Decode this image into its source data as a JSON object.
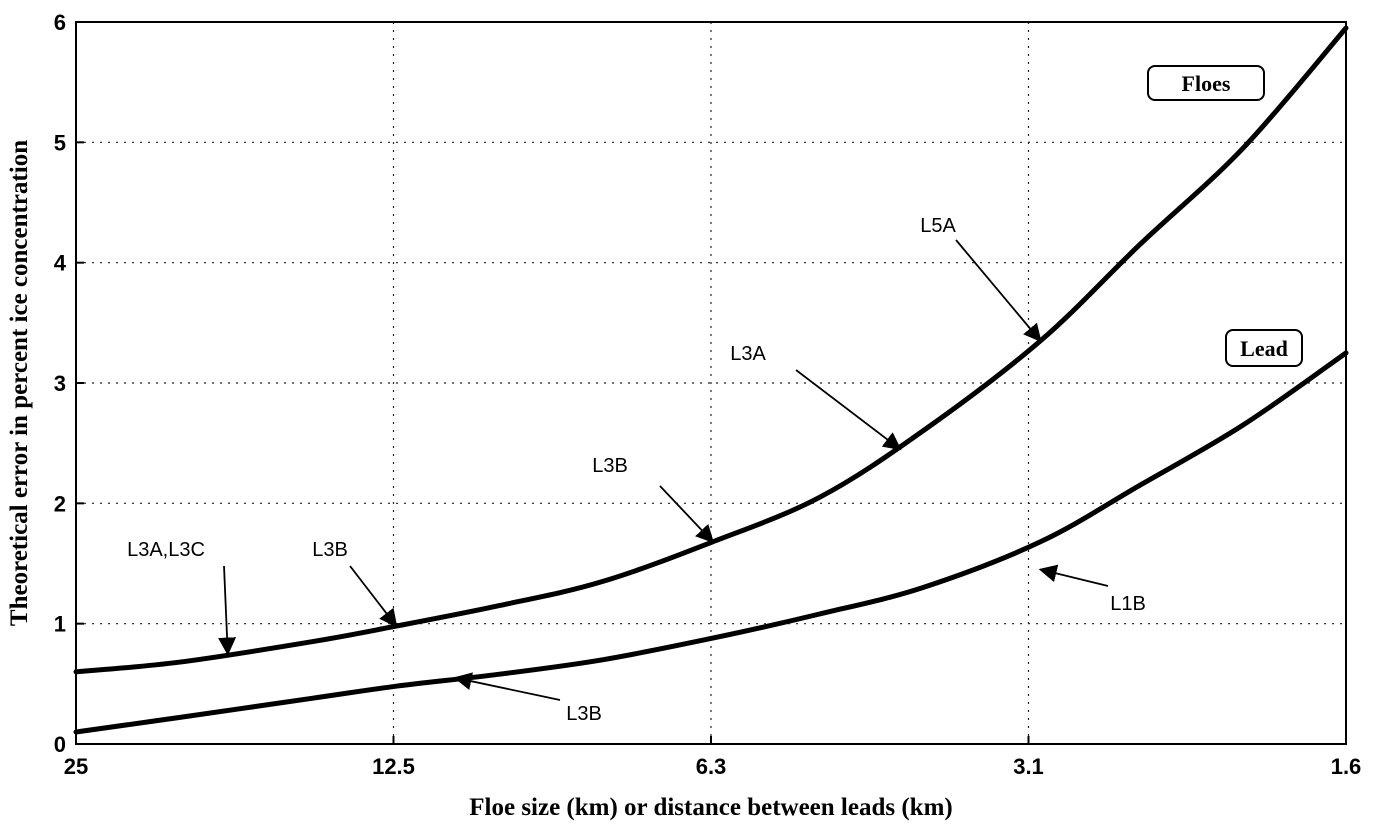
{
  "chart_data": {
    "type": "line",
    "xlabel": "Floe size (km) or distance between leads (km)",
    "ylabel": "Theoretical error in percent ice concentration",
    "x_ticks": [
      "25",
      "12.5",
      "6.3",
      "3.1",
      "1.6"
    ],
    "x_scale": "log2, decreasing from 25 to 1.6 (equally spaced ticks)",
    "ylim": [
      0,
      6
    ],
    "y_ticks": [
      "0",
      "1",
      "2",
      "3",
      "4",
      "5",
      "6"
    ],
    "grid": true,
    "series": [
      {
        "name": "Floes",
        "x": [
          25,
          20,
          15,
          12.5,
          10,
          8,
          6.3,
          5,
          4,
          3.1,
          2.5,
          2,
          1.6
        ],
        "y": [
          0.6,
          0.68,
          0.85,
          0.98,
          1.15,
          1.35,
          1.68,
          2.05,
          2.6,
          3.35,
          4.15,
          4.95,
          5.95
        ]
      },
      {
        "name": "Lead",
        "x": [
          25,
          20,
          15,
          12.5,
          10,
          8,
          6.3,
          5,
          4,
          3.1,
          2.5,
          2,
          1.6
        ],
        "y": [
          0.1,
          0.22,
          0.38,
          0.48,
          0.58,
          0.7,
          0.88,
          1.08,
          1.3,
          1.68,
          2.15,
          2.65,
          3.25
        ]
      }
    ],
    "annotations": [
      {
        "text": "L5A",
        "target_x": 3.1,
        "target_y": 3.35
      },
      {
        "text": "L3A",
        "target_x": 4.2,
        "target_y": 2.45
      },
      {
        "text": "L3B",
        "target_x": 6.3,
        "target_y": 1.68
      },
      {
        "text": "L3A,L3C",
        "target_x": 18,
        "target_y": 0.75
      },
      {
        "text": "L3B",
        "target_x": 12.5,
        "target_y": 0.98
      },
      {
        "text": "L3B",
        "target_x": 11,
        "target_y": 0.55
      },
      {
        "text": "L1B",
        "target_x": 3.1,
        "target_y": 1.45
      }
    ],
    "legend_boxes": [
      "Floes",
      "Lead"
    ]
  }
}
